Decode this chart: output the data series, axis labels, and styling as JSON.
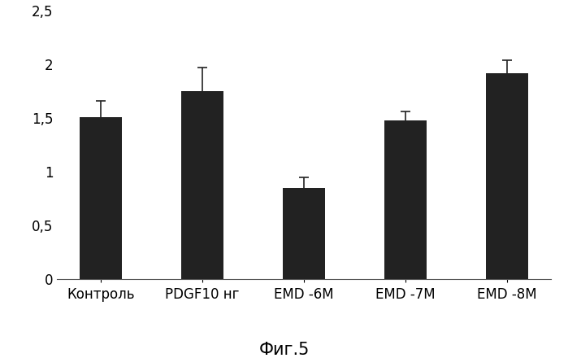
{
  "categories": [
    "Контроль",
    "PDGF10 нг",
    "EMD -6M",
    "EMD -7M",
    "EMD -8M"
  ],
  "values": [
    1.51,
    1.75,
    0.85,
    1.48,
    1.92
  ],
  "errors": [
    0.15,
    0.22,
    0.1,
    0.08,
    0.12
  ],
  "bar_color": "#222222",
  "bar_width": 0.42,
  "ylim": [
    0,
    2.5
  ],
  "yticks": [
    0,
    0.5,
    1.0,
    1.5,
    2.0,
    2.5
  ],
  "ytick_labels": [
    "0",
    "0,5",
    "1",
    "1,5",
    "2",
    "2,5"
  ],
  "caption": "Фиг.5",
  "caption_fontsize": 15,
  "tick_fontsize": 12,
  "label_fontsize": 12,
  "background_color": "#ffffff",
  "figure_bg": "#ffffff"
}
